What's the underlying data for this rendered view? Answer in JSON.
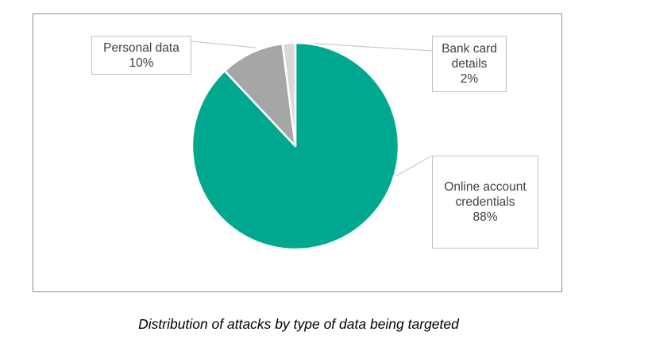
{
  "chart_data": {
    "type": "pie",
    "caption": "Distribution of attacks by type of data being targeted",
    "slices": [
      {
        "label_lines": [
          "Online account",
          "credentials"
        ],
        "value": 88,
        "value_label": "88%",
        "color": "#00a88f"
      },
      {
        "label_lines": [
          "Personal data"
        ],
        "value": 10,
        "value_label": "10%",
        "color": "#a6a6a6"
      },
      {
        "label_lines": [
          "Bank card",
          "details"
        ],
        "value": 2,
        "value_label": "2%",
        "color": "#d9d9d9"
      }
    ],
    "legend": "none",
    "data_labels": "callouts"
  }
}
